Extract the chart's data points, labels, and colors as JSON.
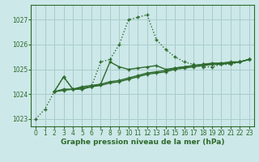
{
  "background_color": "#cce8e8",
  "grid_color": "#aacccc",
  "line_color": "#2d6a2d",
  "xlabel": "Graphe pression niveau de la mer (hPa)",
  "xlim": [
    -0.5,
    23.5
  ],
  "ylim": [
    1022.7,
    1027.6
  ],
  "yticks": [
    1023,
    1024,
    1025,
    1026,
    1027
  ],
  "xticks": [
    0,
    1,
    2,
    3,
    4,
    5,
    6,
    7,
    8,
    9,
    10,
    11,
    12,
    13,
    14,
    15,
    16,
    17,
    18,
    19,
    20,
    21,
    22,
    23
  ],
  "series": [
    {
      "x": [
        0,
        1,
        2,
        3,
        4,
        5,
        6,
        7,
        8,
        9,
        10,
        11,
        12,
        13,
        14,
        15,
        16,
        17,
        18,
        19,
        20,
        21,
        22,
        23
      ],
      "y": [
        1023.0,
        1023.4,
        1024.1,
        1024.7,
        1024.2,
        1024.2,
        1024.3,
        1025.3,
        1025.4,
        1026.0,
        1027.0,
        1027.1,
        1027.2,
        1026.2,
        1025.8,
        1025.5,
        1025.3,
        1025.2,
        1025.1,
        1025.1,
        1025.2,
        1025.2,
        1025.3,
        1025.4
      ],
      "linestyle": "dotted",
      "lw": 1.0
    },
    {
      "x": [
        2,
        3,
        4,
        5,
        6,
        7,
        8,
        9,
        10,
        11,
        12,
        13,
        14,
        15,
        16,
        17,
        18,
        19,
        20,
        21,
        22,
        23
      ],
      "y": [
        1024.1,
        1024.15,
        1024.2,
        1024.25,
        1024.3,
        1024.35,
        1024.45,
        1024.5,
        1024.6,
        1024.7,
        1024.8,
        1024.85,
        1024.9,
        1025.0,
        1025.05,
        1025.1,
        1025.15,
        1025.2,
        1025.2,
        1025.25,
        1025.3,
        1025.4
      ],
      "linestyle": "solid",
      "lw": 1.0
    },
    {
      "x": [
        2,
        3,
        4,
        5,
        6,
        7,
        8,
        9,
        10,
        11,
        12,
        13,
        14,
        15,
        16,
        17,
        18,
        19,
        20,
        21,
        22,
        23
      ],
      "y": [
        1024.1,
        1024.2,
        1024.2,
        1024.3,
        1024.35,
        1024.4,
        1024.5,
        1024.55,
        1024.65,
        1024.75,
        1024.85,
        1024.9,
        1024.95,
        1025.05,
        1025.1,
        1025.15,
        1025.2,
        1025.25,
        1025.25,
        1025.3,
        1025.3,
        1025.4
      ],
      "linestyle": "solid",
      "lw": 1.0
    },
    {
      "x": [
        2,
        3,
        4,
        5,
        6,
        7,
        8,
        9,
        10,
        11,
        12,
        13,
        14,
        15,
        16,
        17,
        18,
        19,
        20,
        21,
        22,
        23
      ],
      "y": [
        1024.1,
        1024.7,
        1024.2,
        1024.2,
        1024.3,
        1024.4,
        1025.3,
        1025.1,
        1025.0,
        1025.05,
        1025.1,
        1025.15,
        1025.0,
        1025.05,
        1025.1,
        1025.15,
        1025.2,
        1025.2,
        1025.25,
        1025.25,
        1025.3,
        1025.4
      ],
      "linestyle": "solid",
      "lw": 1.0
    }
  ]
}
